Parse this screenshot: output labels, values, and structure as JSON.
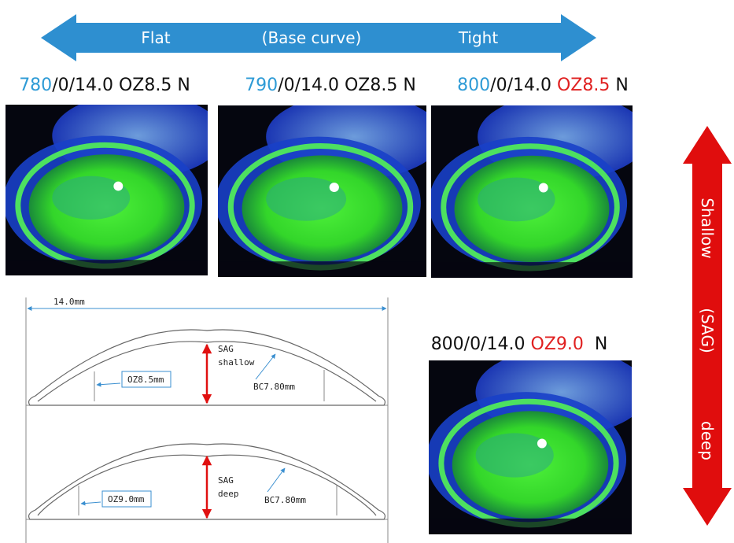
{
  "base_curve_arrow": {
    "labels": [
      "Flat",
      "(Base curve)",
      "Tight"
    ]
  },
  "sag_arrow": {
    "labels": [
      "Shallow",
      "(SAG)",
      "deep"
    ]
  },
  "photos": [
    {
      "caption": [
        {
          "text": "780",
          "color": "#2e9bd6"
        },
        {
          "text": "/0/14.0 OZ8.5 N",
          "color": "#111111"
        }
      ]
    },
    {
      "caption": [
        {
          "text": "790",
          "color": "#2e9bd6"
        },
        {
          "text": "/0/14.0 OZ8.5 N",
          "color": "#111111"
        }
      ]
    },
    {
      "caption": [
        {
          "text": "800",
          "color": "#2e9bd6"
        },
        {
          "text": "/0/14.0 ",
          "color": "#111111"
        },
        {
          "text": "OZ8.5",
          "color": "#e02020"
        },
        {
          "text": " N",
          "color": "#111111"
        }
      ]
    },
    {
      "caption": [
        {
          "text": "800/0/14.0 ",
          "color": "#111111"
        },
        {
          "text": "OZ9.0",
          "color": "#e02020"
        },
        {
          "text": "  N",
          "color": "#111111"
        }
      ]
    }
  ],
  "lens_diagram": {
    "diameter": "14.0mm",
    "shallow": {
      "oz": "OZ8.5mm",
      "sag": "SAG",
      "depth": "shallow",
      "bc": "BC7.80mm"
    },
    "deep": {
      "oz": "OZ9.0mm",
      "sag": "SAG",
      "depth": "deep",
      "bc": "BC7.80mm"
    }
  }
}
